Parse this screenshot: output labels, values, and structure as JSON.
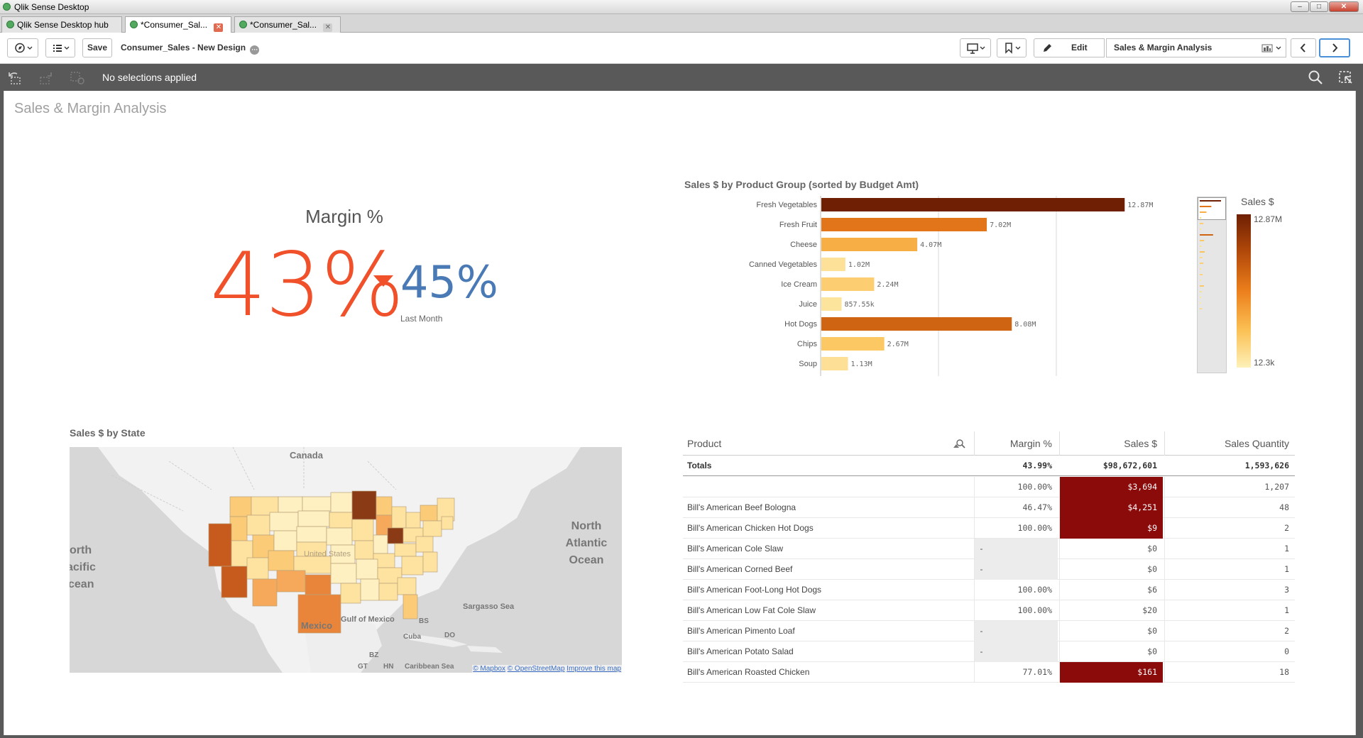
{
  "window": {
    "title": "Qlik Sense Desktop"
  },
  "tabs": [
    {
      "label": "Qlik Sense Desktop hub"
    },
    {
      "label": "*Consumer_Sal..."
    },
    {
      "label": "*Consumer_Sal..."
    }
  ],
  "toolbar": {
    "save_label": "Save",
    "app_name": "Consumer_Sales - New Design",
    "edit_label": "Edit",
    "sheet_name": "Sales & Margin Analysis"
  },
  "selections": {
    "text": "No selections applied"
  },
  "sheet": {
    "title": "Sales & Margin Analysis"
  },
  "kpi": {
    "title": "Margin %",
    "value": "43%",
    "compare_value": "45%",
    "compare_label": "Last Month",
    "colors": {
      "value": "#f0502a",
      "compare": "#4a7ab5",
      "arrow": "#f0502a"
    }
  },
  "bar_chart": {
    "title": "Sales $ by Product Group (sorted by Budget Amt)",
    "legend_title": "Sales $",
    "legend_max": "12.87M",
    "legend_min": "12.3k"
  },
  "chart_data": {
    "type": "bar",
    "orientation": "horizontal",
    "title": "Sales $ by Product Group (sorted by Budget Amt)",
    "categories": [
      "Fresh Vegetables",
      "Fresh Fruit",
      "Cheese",
      "Canned Vegetables",
      "Ice Cream",
      "Juice",
      "Hot Dogs",
      "Chips",
      "Soup"
    ],
    "values": [
      12870000,
      7020000,
      4070000,
      1020000,
      2240000,
      857550,
      8080000,
      2670000,
      1130000
    ],
    "value_labels": [
      "12.87M",
      "7.02M",
      "4.07M",
      "1.02M",
      "2.24M",
      "857.55k",
      "8.08M",
      "2.67M",
      "1.13M"
    ],
    "xlim": [
      0,
      15000000
    ],
    "color_scale": {
      "min": 12300,
      "max": 12870000,
      "low_color": "#fde9a6",
      "high_color": "#6e1f04"
    },
    "legend_position": "right"
  },
  "map": {
    "title": "Sales $ by State",
    "labels": [
      "Canada",
      "North Atlantic Ocean",
      "North Pacific Ocean",
      "United States",
      "Mexico",
      "Gulf of Mexico",
      "Sargasso Sea",
      "BS",
      "Cuba",
      "DO",
      "BZ",
      "GT",
      "HN",
      "Caribbean Sea"
    ],
    "attribution": {
      "mapbox": "© Mapbox",
      "osm": "© OpenStreetMap",
      "improve": "Improve this map"
    }
  },
  "table": {
    "columns": [
      "Product",
      "Margin %",
      "Sales $",
      "Sales Quantity"
    ],
    "totals": {
      "label": "Totals",
      "margin": "43.99%",
      "sales": "$98,672,601",
      "quantity": "1,593,626"
    },
    "rows": [
      {
        "product": "",
        "margin": "100.00%",
        "sales": "$3,694",
        "quantity": "1,207",
        "highlight": true
      },
      {
        "product": "Bill's American Beef Bologna",
        "margin": "46.47%",
        "sales": "$4,251",
        "quantity": "48",
        "highlight": true
      },
      {
        "product": "Bill's American Chicken Hot Dogs",
        "margin": "100.00%",
        "sales": "$9",
        "quantity": "2",
        "highlight": true
      },
      {
        "product": "Bill's American Cole Slaw",
        "margin": "-",
        "sales": "$0",
        "quantity": "1",
        "highlight": false
      },
      {
        "product": "Bill's American Corned Beef",
        "margin": "-",
        "sales": "$0",
        "quantity": "1",
        "highlight": false
      },
      {
        "product": "Bill's American Foot-Long Hot Dogs",
        "margin": "100.00%",
        "sales": "$6",
        "quantity": "3",
        "highlight": false
      },
      {
        "product": "Bill's American Low Fat Cole Slaw",
        "margin": "100.00%",
        "sales": "$20",
        "quantity": "1",
        "highlight": false
      },
      {
        "product": "Bill's American Pimento Loaf",
        "margin": "-",
        "sales": "$0",
        "quantity": "2",
        "highlight": false
      },
      {
        "product": "Bill's American Potato Salad",
        "margin": "-",
        "sales": "$0",
        "quantity": "0",
        "highlight": false
      },
      {
        "product": "Bill's American Roasted Chicken",
        "margin": "77.01%",
        "sales": "$161",
        "quantity": "18",
        "highlight": true
      }
    ],
    "highlight_color": "#8b0a0a"
  }
}
